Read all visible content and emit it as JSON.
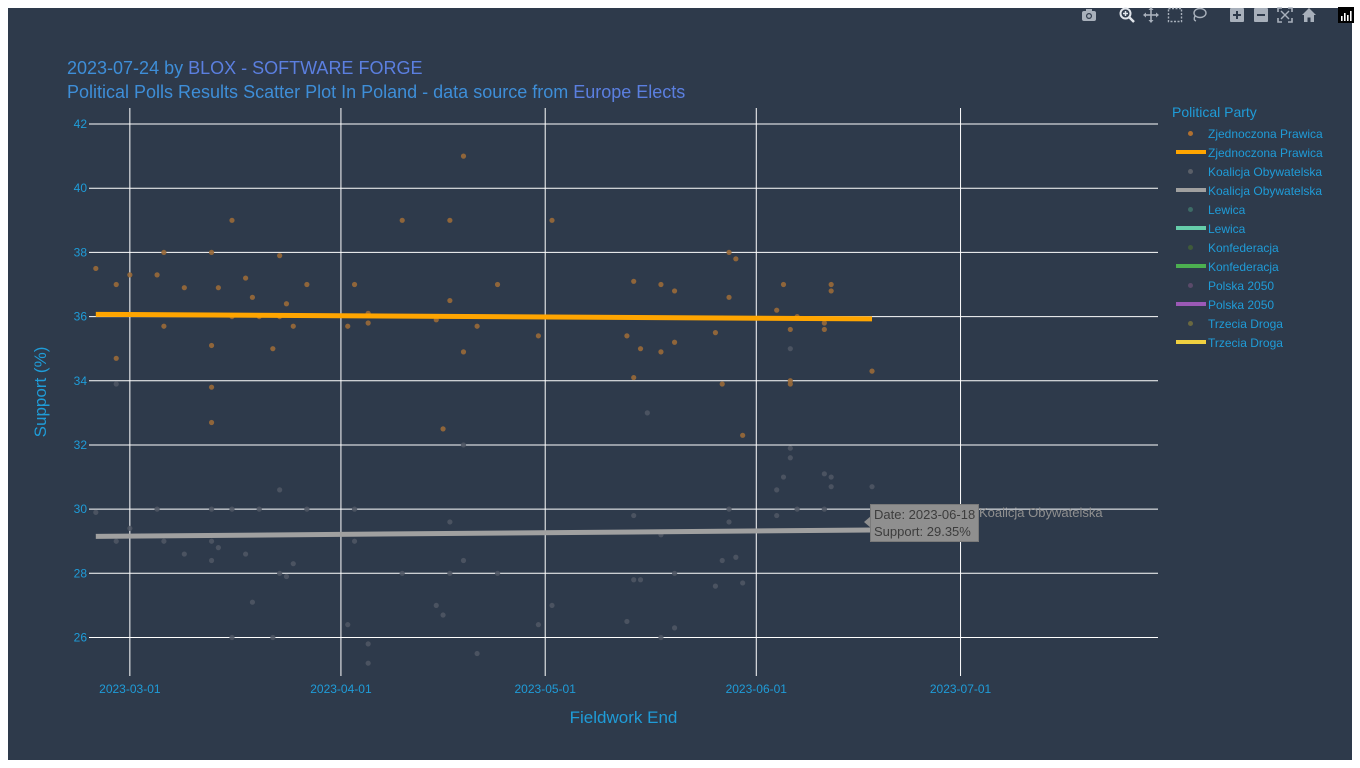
{
  "title": {
    "prefix": "2023-07-24 by ",
    "link": "BLOX - SOFTWARE FORGE",
    "subtitle_text": "Political Polls Results Scatter Plot In Poland - data source from ",
    "subtitle_link": "Europe Elects"
  },
  "legend": {
    "title": "Political Party",
    "items": [
      {
        "label": "Zjednoczona Prawica",
        "kind": "marker",
        "color": "#b07030"
      },
      {
        "label": "Zjednoczona Prawica",
        "kind": "line",
        "color": "#ffa500"
      },
      {
        "label": "Koalicja Obywatelska",
        "kind": "marker",
        "color": "#5a5f68"
      },
      {
        "label": "Koalicja Obywatelska",
        "kind": "line",
        "color": "#a0a0a0"
      },
      {
        "label": "Lewica",
        "kind": "marker",
        "color": "#3d6b66"
      },
      {
        "label": "Lewica",
        "kind": "line",
        "color": "#66cdaa"
      },
      {
        "label": "Konfederacja",
        "kind": "marker",
        "color": "#3f5a3a"
      },
      {
        "label": "Konfederacja",
        "kind": "line",
        "color": "#4caf50"
      },
      {
        "label": "Polska 2050",
        "kind": "marker",
        "color": "#5a4a6a"
      },
      {
        "label": "Polska 2050",
        "kind": "line",
        "color": "#9b59b6"
      },
      {
        "label": "Trzecia Droga",
        "kind": "marker",
        "color": "#6a6840"
      },
      {
        "label": "Trzecia Droga",
        "kind": "line",
        "color": "#f0d040"
      }
    ]
  },
  "tooltip": {
    "date_line": "Date: 2023-06-18",
    "support_line": "Support: 29.35%",
    "series_name": "Koalicja Obywatelska"
  },
  "modebar": {
    "icons": [
      "camera-icon",
      "zoom-icon",
      "pan-icon",
      "box-select-icon",
      "lasso-icon",
      "zoom-in-icon",
      "zoom-out-icon",
      "autoscale-icon",
      "reset-axes-icon",
      "plotly-logo-icon"
    ]
  },
  "chart_data": {
    "type": "scatter",
    "xlabel": "Fieldwork End",
    "ylabel": "Support (%)",
    "xlim": [
      "2023-02-23",
      "2023-07-30"
    ],
    "ylim": [
      24.8,
      42.5
    ],
    "x_ticks": [
      "2023-03-01",
      "2023-04-01",
      "2023-05-01",
      "2023-06-01",
      "2023-07-01"
    ],
    "y_ticks": [
      26,
      28,
      30,
      32,
      34,
      36,
      38,
      40,
      42
    ],
    "grid": true,
    "legend_position": "right",
    "series": [
      {
        "name": "Zjednoczona Prawica",
        "kind": "marker",
        "color": "#9a6a38",
        "points": [
          [
            "2023-02-24",
            37.5
          ],
          [
            "2023-02-27",
            37.0
          ],
          [
            "2023-02-27",
            34.7
          ],
          [
            "2023-03-01",
            37.3
          ],
          [
            "2023-03-05",
            37.3
          ],
          [
            "2023-03-06",
            35.7
          ],
          [
            "2023-03-06",
            38.0
          ],
          [
            "2023-03-09",
            36.9
          ],
          [
            "2023-03-13",
            38.0
          ],
          [
            "2023-03-13",
            35.1
          ],
          [
            "2023-03-13",
            33.8
          ],
          [
            "2023-03-13",
            32.7
          ],
          [
            "2023-03-14",
            36.9
          ],
          [
            "2023-03-16",
            39.0
          ],
          [
            "2023-03-16",
            36.0
          ],
          [
            "2023-03-18",
            37.2
          ],
          [
            "2023-03-19",
            36.6
          ],
          [
            "2023-03-20",
            36.0
          ],
          [
            "2023-03-22",
            35.0
          ],
          [
            "2023-03-23",
            37.9
          ],
          [
            "2023-03-23",
            36.0
          ],
          [
            "2023-03-24",
            36.4
          ],
          [
            "2023-03-25",
            35.7
          ],
          [
            "2023-03-27",
            37.0
          ],
          [
            "2023-04-02",
            35.7
          ],
          [
            "2023-04-03",
            37.0
          ],
          [
            "2023-04-05",
            36.1
          ],
          [
            "2023-04-05",
            35.8
          ],
          [
            "2023-04-10",
            39.0
          ],
          [
            "2023-04-15",
            35.9
          ],
          [
            "2023-04-16",
            32.5
          ],
          [
            "2023-04-17",
            39.0
          ],
          [
            "2023-04-17",
            36.5
          ],
          [
            "2023-04-19",
            41.0
          ],
          [
            "2023-04-19",
            34.9
          ],
          [
            "2023-04-21",
            35.7
          ],
          [
            "2023-04-24",
            37.0
          ],
          [
            "2023-04-30",
            35.4
          ],
          [
            "2023-05-02",
            39.0
          ],
          [
            "2023-05-13",
            35.4
          ],
          [
            "2023-05-14",
            37.1
          ],
          [
            "2023-05-14",
            34.1
          ],
          [
            "2023-05-15",
            35.0
          ],
          [
            "2023-05-18",
            37.0
          ],
          [
            "2023-05-18",
            34.9
          ],
          [
            "2023-05-20",
            36.8
          ],
          [
            "2023-05-20",
            35.2
          ],
          [
            "2023-05-26",
            35.5
          ],
          [
            "2023-05-27",
            33.9
          ],
          [
            "2023-05-28",
            38.0
          ],
          [
            "2023-05-28",
            36.6
          ],
          [
            "2023-05-29",
            37.8
          ],
          [
            "2023-05-30",
            32.3
          ],
          [
            "2023-06-04",
            36.2
          ],
          [
            "2023-06-05",
            37.0
          ],
          [
            "2023-06-06",
            35.6
          ],
          [
            "2023-06-06",
            34.0
          ],
          [
            "2023-06-06",
            33.9
          ],
          [
            "2023-06-07",
            36.0
          ],
          [
            "2023-06-11",
            35.8
          ],
          [
            "2023-06-11",
            35.6
          ],
          [
            "2023-06-12",
            37.0
          ],
          [
            "2023-06-12",
            36.8
          ],
          [
            "2023-06-18",
            34.3
          ]
        ]
      },
      {
        "name": "Koalicja Obywatelska",
        "kind": "marker",
        "color": "#4f5764",
        "points": [
          [
            "2023-02-24",
            29.9
          ],
          [
            "2023-02-27",
            29.0
          ],
          [
            "2023-02-27",
            33.9
          ],
          [
            "2023-03-01",
            29.4
          ],
          [
            "2023-03-05",
            30.0
          ],
          [
            "2023-03-06",
            29.0
          ],
          [
            "2023-03-09",
            28.6
          ],
          [
            "2023-03-13",
            30.0
          ],
          [
            "2023-03-13",
            29.0
          ],
          [
            "2023-03-13",
            28.4
          ],
          [
            "2023-03-14",
            28.8
          ],
          [
            "2023-03-16",
            30.0
          ],
          [
            "2023-03-16",
            26.0
          ],
          [
            "2023-03-18",
            28.6
          ],
          [
            "2023-03-19",
            27.1
          ],
          [
            "2023-03-20",
            30.0
          ],
          [
            "2023-03-22",
            26.0
          ],
          [
            "2023-03-23",
            30.6
          ],
          [
            "2023-03-23",
            28.0
          ],
          [
            "2023-03-24",
            27.9
          ],
          [
            "2023-03-25",
            28.3
          ],
          [
            "2023-03-27",
            30.0
          ],
          [
            "2023-04-02",
            26.4
          ],
          [
            "2023-04-03",
            30.0
          ],
          [
            "2023-04-03",
            29.0
          ],
          [
            "2023-04-05",
            25.8
          ],
          [
            "2023-04-05",
            25.2
          ],
          [
            "2023-04-10",
            28.0
          ],
          [
            "2023-04-15",
            27.0
          ],
          [
            "2023-04-16",
            26.7
          ],
          [
            "2023-04-17",
            29.6
          ],
          [
            "2023-04-17",
            28.0
          ],
          [
            "2023-04-19",
            32.0
          ],
          [
            "2023-04-19",
            28.4
          ],
          [
            "2023-04-21",
            25.5
          ],
          [
            "2023-04-24",
            28.0
          ],
          [
            "2023-04-30",
            26.4
          ],
          [
            "2023-05-02",
            27.0
          ],
          [
            "2023-05-13",
            26.5
          ],
          [
            "2023-05-14",
            29.8
          ],
          [
            "2023-05-14",
            27.8
          ],
          [
            "2023-05-15",
            27.8
          ],
          [
            "2023-05-16",
            33.0
          ],
          [
            "2023-05-18",
            29.2
          ],
          [
            "2023-05-18",
            26.0
          ],
          [
            "2023-05-20",
            28.0
          ],
          [
            "2023-05-20",
            26.3
          ],
          [
            "2023-05-26",
            27.6
          ],
          [
            "2023-05-27",
            28.4
          ],
          [
            "2023-05-28",
            30.0
          ],
          [
            "2023-05-28",
            29.6
          ],
          [
            "2023-05-29",
            28.5
          ],
          [
            "2023-05-30",
            27.7
          ],
          [
            "2023-06-04",
            30.6
          ],
          [
            "2023-06-04",
            29.8
          ],
          [
            "2023-06-05",
            31.0
          ],
          [
            "2023-06-06",
            35.0
          ],
          [
            "2023-06-06",
            31.9
          ],
          [
            "2023-06-06",
            31.6
          ],
          [
            "2023-06-07",
            30.0
          ],
          [
            "2023-06-11",
            31.1
          ],
          [
            "2023-06-11",
            30.0
          ],
          [
            "2023-06-12",
            31.0
          ],
          [
            "2023-06-12",
            30.7
          ],
          [
            "2023-06-18",
            30.7
          ]
        ]
      },
      {
        "name": "Zjednoczona Prawica",
        "kind": "line",
        "color": "#ffa500",
        "points": [
          [
            "2023-02-24",
            36.07
          ],
          [
            "2023-06-18",
            35.93
          ]
        ]
      },
      {
        "name": "Koalicja Obywatelska",
        "kind": "line",
        "color": "#a0a0a0",
        "points": [
          [
            "2023-02-24",
            29.15
          ],
          [
            "2023-06-18",
            29.35
          ]
        ]
      }
    ]
  }
}
